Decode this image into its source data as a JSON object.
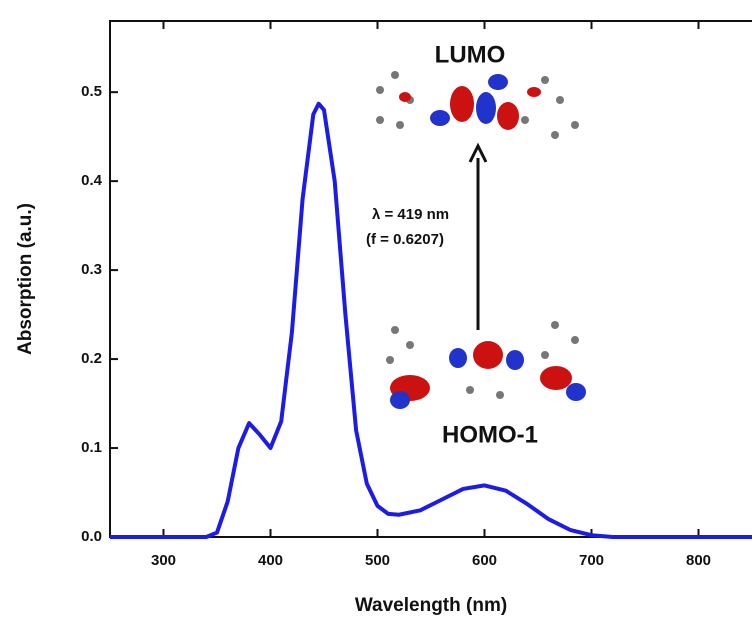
{
  "chart_data": {
    "type": "line",
    "xlabel": "Wavelength (nm)",
    "ylabel": "Absorption (a.u.)",
    "annotations": [
      "LUMO",
      "HOMO-1",
      "λ = 419 nm",
      "(f = 0.6207)"
    ],
    "x": [
      250,
      300,
      340,
      350,
      360,
      370,
      380,
      390,
      400,
      410,
      420,
      430,
      440,
      445,
      450,
      460,
      470,
      480,
      490,
      500,
      510,
      520,
      540,
      560,
      580,
      600,
      620,
      640,
      660,
      680,
      700,
      720,
      850
    ],
    "series": [
      {
        "color": "#1c1ce6",
        "values": [
          0,
          0,
          0,
          0.005,
          0.04,
          0.1,
          0.128,
          0.115,
          0.1,
          0.13,
          0.23,
          0.38,
          0.475,
          0.487,
          0.48,
          0.4,
          0.25,
          0.12,
          0.06,
          0.035,
          0.026,
          0.025,
          0.03,
          0.042,
          0.054,
          0.058,
          0.052,
          0.037,
          0.02,
          0.008,
          0.002,
          0,
          0
        ]
      }
    ],
    "xlim": [
      250,
      850
    ],
    "ylim": [
      0,
      0.58
    ],
    "xticks": [
      300,
      400,
      500,
      600,
      700,
      800
    ],
    "yticks": [
      {
        "value": 0,
        "label": "0.0"
      },
      0.1,
      0.2,
      0.3,
      0.4,
      0.5
    ]
  }
}
